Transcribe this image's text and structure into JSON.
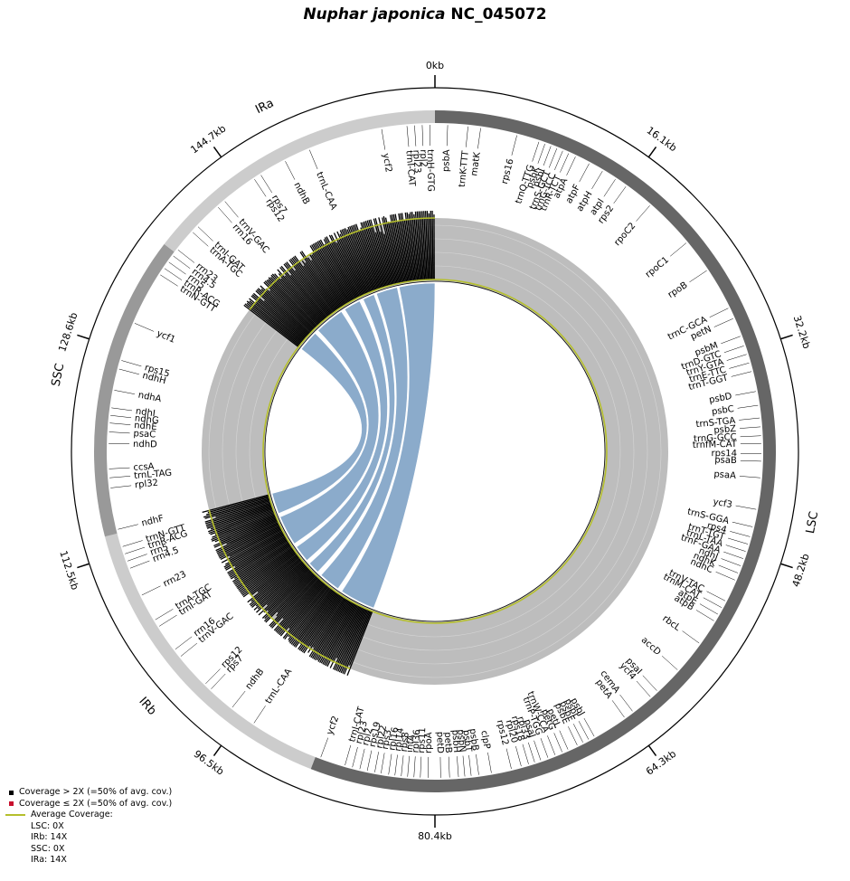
{
  "chart_data": {
    "type": "genome-map",
    "title_species": "Nuphar japonica",
    "title_accession": "NC_045072",
    "genome_length_kb": 160.9,
    "ticks": [
      "0kb",
      "16.1kb",
      "32.2kb",
      "48.2kb",
      "64.3kb",
      "80.4kb",
      "96.5kb",
      "112.5kb",
      "128.6kb",
      "144.7kb"
    ],
    "regions": [
      {
        "name": "LSC",
        "start_kb": 0,
        "end_kb": 90.0,
        "color": "#666666"
      },
      {
        "name": "IRb",
        "start_kb": 90.0,
        "end_kb": 114.2,
        "color": "#cccccc"
      },
      {
        "name": "SSC",
        "start_kb": 114.2,
        "end_kb": 137.4,
        "color": "#999999"
      },
      {
        "name": "IRa",
        "start_kb": 137.4,
        "end_kb": 160.9,
        "color": "#cccccc"
      }
    ],
    "genes": [
      {
        "name": "psbA",
        "kb": 1.0
      },
      {
        "name": "trnK-TTT",
        "kb": 2.6
      },
      {
        "name": "matK",
        "kb": 3.6
      },
      {
        "name": "rps16",
        "kb": 6.5
      },
      {
        "name": "trnQ-TTG",
        "kb": 8.3
      },
      {
        "name": "psbK",
        "kb": 8.8
      },
      {
        "name": "psbI",
        "kb": 9.3
      },
      {
        "name": "trnS-GCT",
        "kb": 9.8
      },
      {
        "name": "trnG-TCC",
        "kb": 10.3
      },
      {
        "name": "trnR-TCT",
        "kb": 10.8
      },
      {
        "name": "atpA",
        "kb": 11.4
      },
      {
        "name": "atpF",
        "kb": 12.6
      },
      {
        "name": "atpH",
        "kb": 13.8
      },
      {
        "name": "atpI",
        "kb": 15.0
      },
      {
        "name": "rps2",
        "kb": 16.0
      },
      {
        "name": "rpoC2",
        "kb": 18.4
      },
      {
        "name": "rpoC1",
        "kb": 22.5
      },
      {
        "name": "rpoB",
        "kb": 25.2
      },
      {
        "name": "trnC-GCA",
        "kb": 28.6
      },
      {
        "name": "petN",
        "kb": 29.5
      },
      {
        "name": "psbM",
        "kb": 31.0
      },
      {
        "name": "trnD-GTC",
        "kb": 31.8
      },
      {
        "name": "trnY-GTA",
        "kb": 32.5
      },
      {
        "name": "trnE-TTC",
        "kb": 33.2
      },
      {
        "name": "trnT-GGT",
        "kb": 33.9
      },
      {
        "name": "psbD",
        "kb": 35.5
      },
      {
        "name": "psbC",
        "kb": 36.6
      },
      {
        "name": "trnS-TGA",
        "kb": 37.6
      },
      {
        "name": "psbZ",
        "kb": 38.3
      },
      {
        "name": "trnG-GCC",
        "kb": 39.0
      },
      {
        "name": "trnfM-CAT",
        "kb": 39.6
      },
      {
        "name": "rps14",
        "kb": 40.4
      },
      {
        "name": "psaB",
        "kb": 41.0
      },
      {
        "name": "psaA",
        "kb": 42.3
      },
      {
        "name": "ycf3",
        "kb": 44.8
      },
      {
        "name": "trnS-GGA",
        "kb": 46.2
      },
      {
        "name": "rps4",
        "kb": 47.0
      },
      {
        "name": "trnT-TGT",
        "kb": 47.6
      },
      {
        "name": "trnL-TAA",
        "kb": 48.2
      },
      {
        "name": "trnF-GAA",
        "kb": 48.8
      },
      {
        "name": "ndhJ",
        "kb": 49.4
      },
      {
        "name": "ndhK",
        "kb": 50.0
      },
      {
        "name": "ndhC",
        "kb": 50.6
      },
      {
        "name": "trnV-TAC",
        "kb": 52.4
      },
      {
        "name": "trnM-CAT",
        "kb": 53.0
      },
      {
        "name": "atpE",
        "kb": 53.6
      },
      {
        "name": "atpB",
        "kb": 54.2
      },
      {
        "name": "rbcL",
        "kb": 56.3
      },
      {
        "name": "accD",
        "kb": 59.0
      },
      {
        "name": "psaI",
        "kb": 61.3
      },
      {
        "name": "ycf4",
        "kb": 62.0
      },
      {
        "name": "cemA",
        "kb": 63.8
      },
      {
        "name": "petA",
        "kb": 64.6
      },
      {
        "name": "psbJ",
        "kb": 67.4
      },
      {
        "name": "psbL",
        "kb": 67.9
      },
      {
        "name": "psbF",
        "kb": 68.4
      },
      {
        "name": "psbE",
        "kb": 68.9
      },
      {
        "name": "petL",
        "kb": 69.7
      },
      {
        "name": "petG",
        "kb": 70.2
      },
      {
        "name": "trnW-CCA",
        "kb": 70.8
      },
      {
        "name": "trnP-TGG",
        "kb": 71.4
      },
      {
        "name": "psaJ",
        "kb": 72.0
      },
      {
        "name": "rpl33",
        "kb": 72.5
      },
      {
        "name": "rps18",
        "kb": 73.0
      },
      {
        "name": "rpl20",
        "kb": 73.6
      },
      {
        "name": "rps12",
        "kb": 74.4
      },
      {
        "name": "clpP",
        "kb": 76.0
      },
      {
        "name": "psbB",
        "kb": 77.0
      },
      {
        "name": "psbT",
        "kb": 77.6
      },
      {
        "name": "psbN",
        "kb": 78.1
      },
      {
        "name": "psbH",
        "kb": 78.6
      },
      {
        "name": "petB",
        "kb": 79.3
      },
      {
        "name": "petD",
        "kb": 80.0
      },
      {
        "name": "rpoA",
        "kb": 81.0
      },
      {
        "name": "rps11",
        "kb": 81.6
      },
      {
        "name": "rpl36",
        "kb": 82.1
      },
      {
        "name": "infA",
        "kb": 82.6
      },
      {
        "name": "rps8",
        "kb": 83.1
      },
      {
        "name": "rpl14",
        "kb": 83.6
      },
      {
        "name": "rpl16",
        "kb": 84.1
      },
      {
        "name": "rps3",
        "kb": 84.7
      },
      {
        "name": "rpl22",
        "kb": 85.2
      },
      {
        "name": "rps19",
        "kb": 85.8
      },
      {
        "name": "rpl2",
        "kb": 86.4
      },
      {
        "name": "rpl23",
        "kb": 87.0
      },
      {
        "name": "trnI-CAT",
        "kb": 87.6
      },
      {
        "name": "ycf2",
        "kb": 89.6
      },
      {
        "name": "trnL-CAA",
        "kb": 95.5
      },
      {
        "name": "ndhB",
        "kb": 97.6
      },
      {
        "name": "rps7",
        "kb": 99.8
      },
      {
        "name": "rps12",
        "kb": 100.4
      },
      {
        "name": "trnV-GAC",
        "kb": 103.3
      },
      {
        "name": "rrn16",
        "kb": 104.0
      },
      {
        "name": "trnI-GAT",
        "kb": 106.2
      },
      {
        "name": "trnA-TGC",
        "kb": 106.8
      },
      {
        "name": "rrn23",
        "kb": 109.0
      },
      {
        "name": "rrn4.5",
        "kb": 111.3
      },
      {
        "name": "rrn5",
        "kb": 111.9
      },
      {
        "name": "trnR-ACG",
        "kb": 112.5
      },
      {
        "name": "trnN-GTT",
        "kb": 113.1
      },
      {
        "name": "ndhF",
        "kb": 114.5
      },
      {
        "name": "rpl32",
        "kb": 117.8
      },
      {
        "name": "trnL-TAG",
        "kb": 118.6
      },
      {
        "name": "ccsA",
        "kb": 119.3
      },
      {
        "name": "ndhD",
        "kb": 121.3
      },
      {
        "name": "psaC",
        "kb": 122.2
      },
      {
        "name": "ndhE",
        "kb": 122.9
      },
      {
        "name": "ndhG",
        "kb": 123.5
      },
      {
        "name": "ndhI",
        "kb": 124.1
      },
      {
        "name": "ndhA",
        "kb": 125.5
      },
      {
        "name": "ndhH",
        "kb": 127.2
      },
      {
        "name": "rps15",
        "kb": 127.9
      },
      {
        "name": "ycf1",
        "kb": 131.0
      },
      {
        "name": "trnN-GTT",
        "kb": 135.3
      },
      {
        "name": "trnR-ACG",
        "kb": 135.9
      },
      {
        "name": "rrn5",
        "kb": 136.5
      },
      {
        "name": "rrn4.5",
        "kb": 137.1
      },
      {
        "name": "rrn23",
        "kb": 137.7
      },
      {
        "name": "trnA-TGC",
        "kb": 139.5
      },
      {
        "name": "trnI-GAT",
        "kb": 140.1
      },
      {
        "name": "rrn16",
        "kb": 142.3
      },
      {
        "name": "trnV-GAC",
        "kb": 143.0
      },
      {
        "name": "rps12",
        "kb": 145.9
      },
      {
        "name": "rps7",
        "kb": 146.5
      },
      {
        "name": "ndhB",
        "kb": 148.7
      },
      {
        "name": "trnL-CAA",
        "kb": 150.8
      },
      {
        "name": "ycf2",
        "kb": 156.7
      },
      {
        "name": "trnI-CAT",
        "kb": 158.7
      },
      {
        "name": "rpl23",
        "kb": 159.3
      },
      {
        "name": "rpl2",
        "kb": 159.9
      },
      {
        "name": "trnH-GTG",
        "kb": 160.5
      }
    ],
    "coverage_note": "Coverage histogram present over IRa (approx. 137.4–160.9kb) and IRb (approx. 90.0–114.2kb); LSC and SSC show no coverage.",
    "repeat_links": "Inverted repeat IRb (90.0–114.2kb) linked to IRa (137.4–160.9kb)",
    "colors": {
      "coverage_high": "#000000",
      "coverage_low": "#c8102e",
      "average_line": "#b5bf2c",
      "link": "#85a6c8",
      "coverage_bg": "#bdbdbd"
    }
  },
  "legend": {
    "high_label": "Coverage > 2X (=50% of avg. cov.)",
    "low_label": "Coverage ≤ 2X (=50% of avg. cov.)",
    "avg_label": "Average Coverage:",
    "items": [
      "LSC: 0X",
      "IRb: 14X",
      "SSC: 0X",
      "IRa: 14X"
    ]
  }
}
